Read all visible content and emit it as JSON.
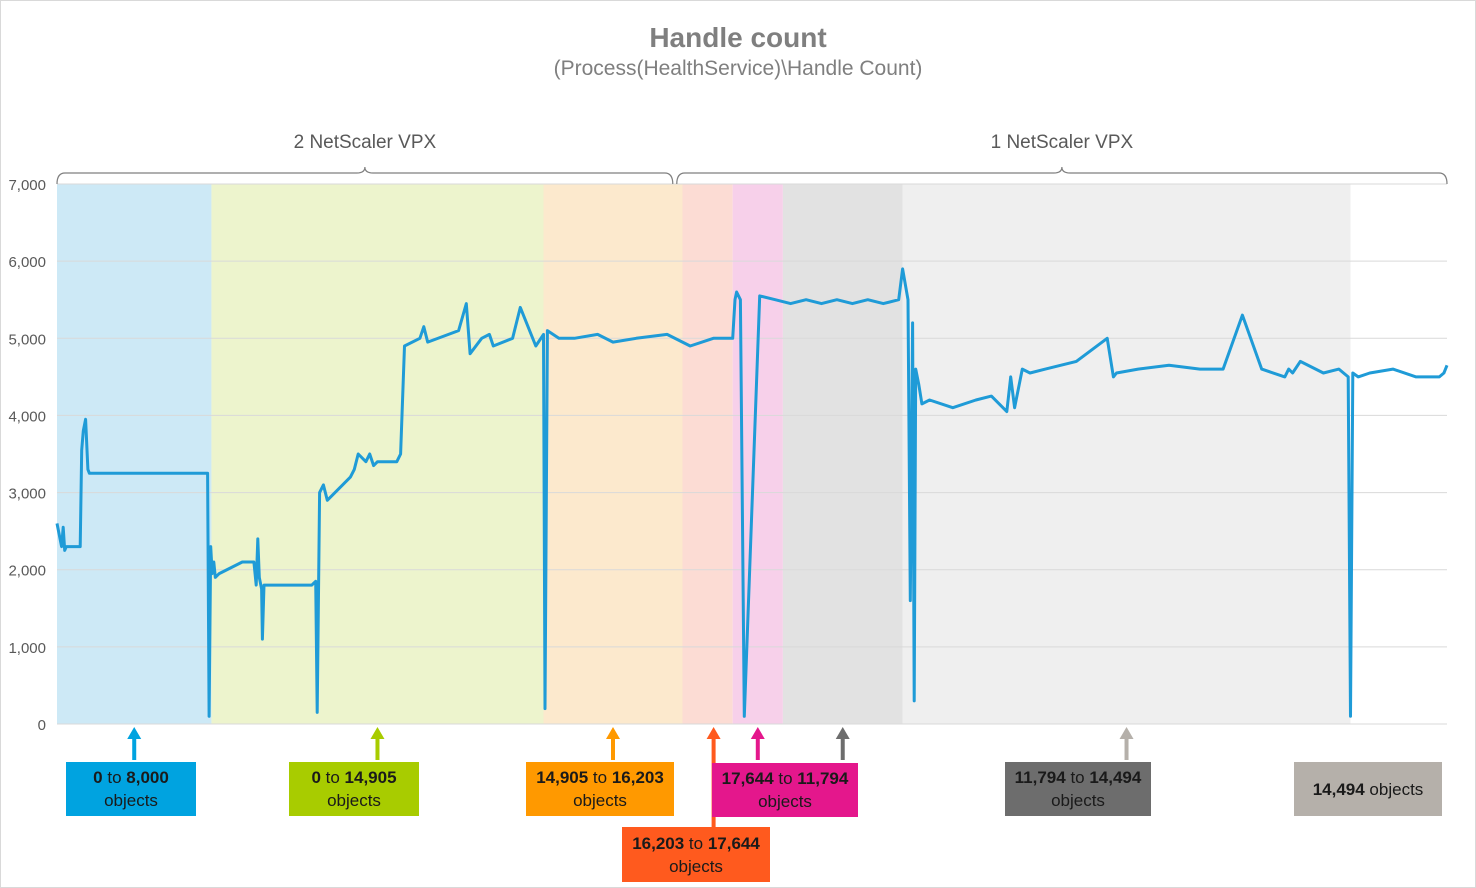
{
  "title": "Handle count",
  "subtitle": "(Process(HealthService)\\Handle Count)",
  "groups": [
    {
      "label": "2 NetScaler VPX",
      "x_start": 0,
      "x_end": 8
    },
    {
      "label": "1 NetScaler VPX",
      "x_start": 8,
      "x_end": 18
    }
  ],
  "phases": [
    {
      "id": "p1",
      "color": "#00a3e0",
      "from": "0",
      "to": "8,000",
      "suffix": "objects",
      "band_color": "#cde9f6"
    },
    {
      "id": "p2",
      "color": "#a8cc00",
      "from": "0",
      "to": "14,905",
      "suffix": "objects",
      "band_color": "#edf4cd"
    },
    {
      "id": "p3",
      "color": "#ff9900",
      "from": "14,905",
      "to": "16,203",
      "suffix": "objects",
      "band_color": "#fce9cd"
    },
    {
      "id": "p4",
      "color": "#ff5a1e",
      "from": "16,203",
      "to": "17,644",
      "suffix": "objects",
      "band_color": "#fcdcd4"
    },
    {
      "id": "p5",
      "color": "#e4178c",
      "from": "17,644",
      "to": "11,794",
      "suffix": "objects",
      "band_color": "#f7d0ea"
    },
    {
      "id": "p6",
      "color": "#6d6d6d",
      "from": "11,794",
      "to": "14,494",
      "suffix": "objects",
      "band_color": "#e2e2e2"
    },
    {
      "id": "p7",
      "color": "#b5b0aa",
      "value": "14,494",
      "suffix": "objects",
      "band_color": "#efefef"
    }
  ],
  "chart_data": {
    "type": "line",
    "title": "Handle count",
    "subtitle": "(Process(HealthService)\\Handle Count)",
    "xlabel": "",
    "ylabel": "",
    "ylim": [
      0,
      7000
    ],
    "yticks": [
      "0",
      "1,000",
      "2,000",
      "3,000",
      "4,000",
      "5,000",
      "6,000",
      "7,000"
    ],
    "grid": true,
    "series_color": "#1f9bd7",
    "phase_boundaries": [
      0,
      2,
      6.3,
      8.1,
      8.75,
      9.4,
      10.95,
      16.75,
      18
    ],
    "series": [
      {
        "x": [
          0,
          0.06,
          0.08,
          0.1,
          0.12,
          0.3,
          0.32,
          0.34,
          0.37,
          0.4,
          0.42,
          0.45,
          0.5,
          0.8,
          1.2,
          1.6,
          1.95,
          1.97,
          1.99,
          2.01,
          2.03,
          2.05,
          2.1,
          2.4,
          2.55,
          2.58,
          2.6,
          2.62,
          2.65,
          2.66,
          2.68,
          3.3,
          3.35,
          3.37,
          3.4,
          3.45,
          3.5,
          3.8,
          3.85,
          3.9,
          4.0,
          4.05,
          4.1,
          4.15,
          4.4,
          4.45,
          4.5,
          4.7,
          4.75,
          4.8,
          5.2,
          5.3,
          5.35,
          5.5,
          5.6,
          5.65,
          5.9,
          6.0,
          6.2,
          6.3,
          6.32,
          6.35,
          6.5,
          6.7,
          7.0,
          7.2,
          7.5,
          7.9,
          8.2,
          8.5,
          8.75,
          8.78,
          8.8,
          8.85,
          8.9,
          9.1,
          9.3,
          9.5,
          9.7,
          9.9,
          10.1,
          10.3,
          10.5,
          10.7,
          10.9,
          10.95,
          11.02,
          11.05,
          11.08,
          11.1,
          11.12,
          11.16,
          11.2,
          11.3,
          11.6,
          11.9,
          12.1,
          12.3,
          12.35,
          12.4,
          12.5,
          12.6,
          12.8,
          13.2,
          13.6,
          13.68,
          13.72,
          14.0,
          14.4,
          14.8,
          15.1,
          15.35,
          15.6,
          15.9,
          15.95,
          16.0,
          16.1,
          16.4,
          16.6,
          16.72,
          16.75,
          16.78,
          16.85,
          17.0,
          17.3,
          17.6,
          17.9,
          17.96,
          17.98,
          18.0
        ],
        "y": [
          2600,
          2300,
          2550,
          2250,
          2300,
          2300,
          3550,
          3800,
          3950,
          3300,
          3250,
          3250,
          3250,
          3250,
          3250,
          3250,
          3250,
          100,
          2300,
          1950,
          2100,
          1900,
          1950,
          2100,
          2100,
          1800,
          2400,
          1900,
          1750,
          1100,
          1800,
          1800,
          1850,
          150,
          3000,
          3100,
          2900,
          3200,
          3300,
          3500,
          3400,
          3500,
          3350,
          3400,
          3400,
          3500,
          4900,
          5000,
          5150,
          4950,
          5100,
          5450,
          4800,
          5000,
          5050,
          4900,
          5000,
          5400,
          4900,
          5050,
          200,
          5100,
          5000,
          5000,
          5050,
          4950,
          5000,
          5050,
          4900,
          5000,
          5000,
          5500,
          5600,
          5500,
          100,
          5550,
          5500,
          5450,
          5500,
          5450,
          5500,
          5450,
          5500,
          5450,
          5500,
          5900,
          5500,
          1600,
          5200,
          300,
          4600,
          4400,
          4150,
          4200,
          4100,
          4200,
          4250,
          4050,
          4500,
          4100,
          4600,
          4550,
          4600,
          4700,
          5000,
          4500,
          4550,
          4600,
          4650,
          4600,
          4600,
          5300,
          4600,
          4500,
          4600,
          4550,
          4700,
          4550,
          4600,
          4500,
          100,
          4550,
          4500,
          4550,
          4600,
          4500,
          4500,
          4550,
          4600,
          4650
        ]
      }
    ]
  }
}
